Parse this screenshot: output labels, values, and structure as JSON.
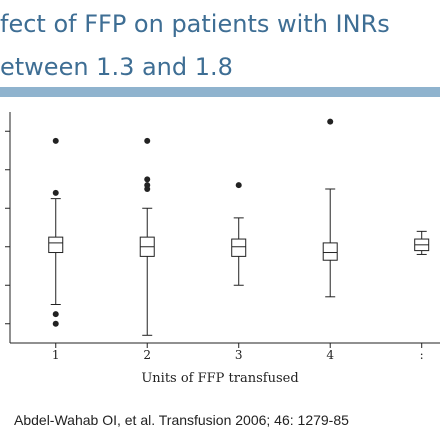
{
  "slide": {
    "title_lines": [
      "fect of FFP on patients with INRs",
      "etween 1.3 and 1.8"
    ],
    "citation": "Abdel-Wahab OI, et al.  Transfusion 2006; 46: 1279-85"
  },
  "colors": {
    "title": "#3e6e94",
    "accent_bar": "#8fb3ce",
    "ink": "#222222"
  },
  "chart_data": {
    "type": "box",
    "xlabel": "Units of FFP transfused",
    "ylabel": "",
    "categories": [
      "1",
      "2",
      "3",
      "4",
      ":"
    ],
    "x_range": [
      0.5,
      5.2
    ],
    "y_range": [
      0.9,
      2.1
    ],
    "grid": false,
    "boxes": [
      {
        "category": "1",
        "whisker_low": 1.1,
        "q1": 1.37,
        "median": 1.42,
        "q3": 1.45,
        "whisker_high": 1.65,
        "outliers": [
          1.0,
          1.05,
          1.68,
          1.95
        ]
      },
      {
        "category": "2",
        "whisker_low": 0.94,
        "q1": 1.35,
        "median": 1.4,
        "q3": 1.45,
        "whisker_high": 1.6,
        "outliers": [
          1.7,
          1.72,
          1.75,
          1.95
        ]
      },
      {
        "category": "3",
        "whisker_low": 1.2,
        "q1": 1.35,
        "median": 1.4,
        "q3": 1.44,
        "whisker_high": 1.55,
        "outliers": [
          1.72
        ]
      },
      {
        "category": "4",
        "whisker_low": 1.14,
        "q1": 1.33,
        "median": 1.37,
        "q3": 1.42,
        "whisker_high": 1.7,
        "outliers": [
          2.05
        ]
      },
      {
        "category": ":",
        "whisker_low": 1.36,
        "q1": 1.38,
        "median": 1.41,
        "q3": 1.44,
        "whisker_high": 1.48,
        "outliers": []
      }
    ]
  }
}
